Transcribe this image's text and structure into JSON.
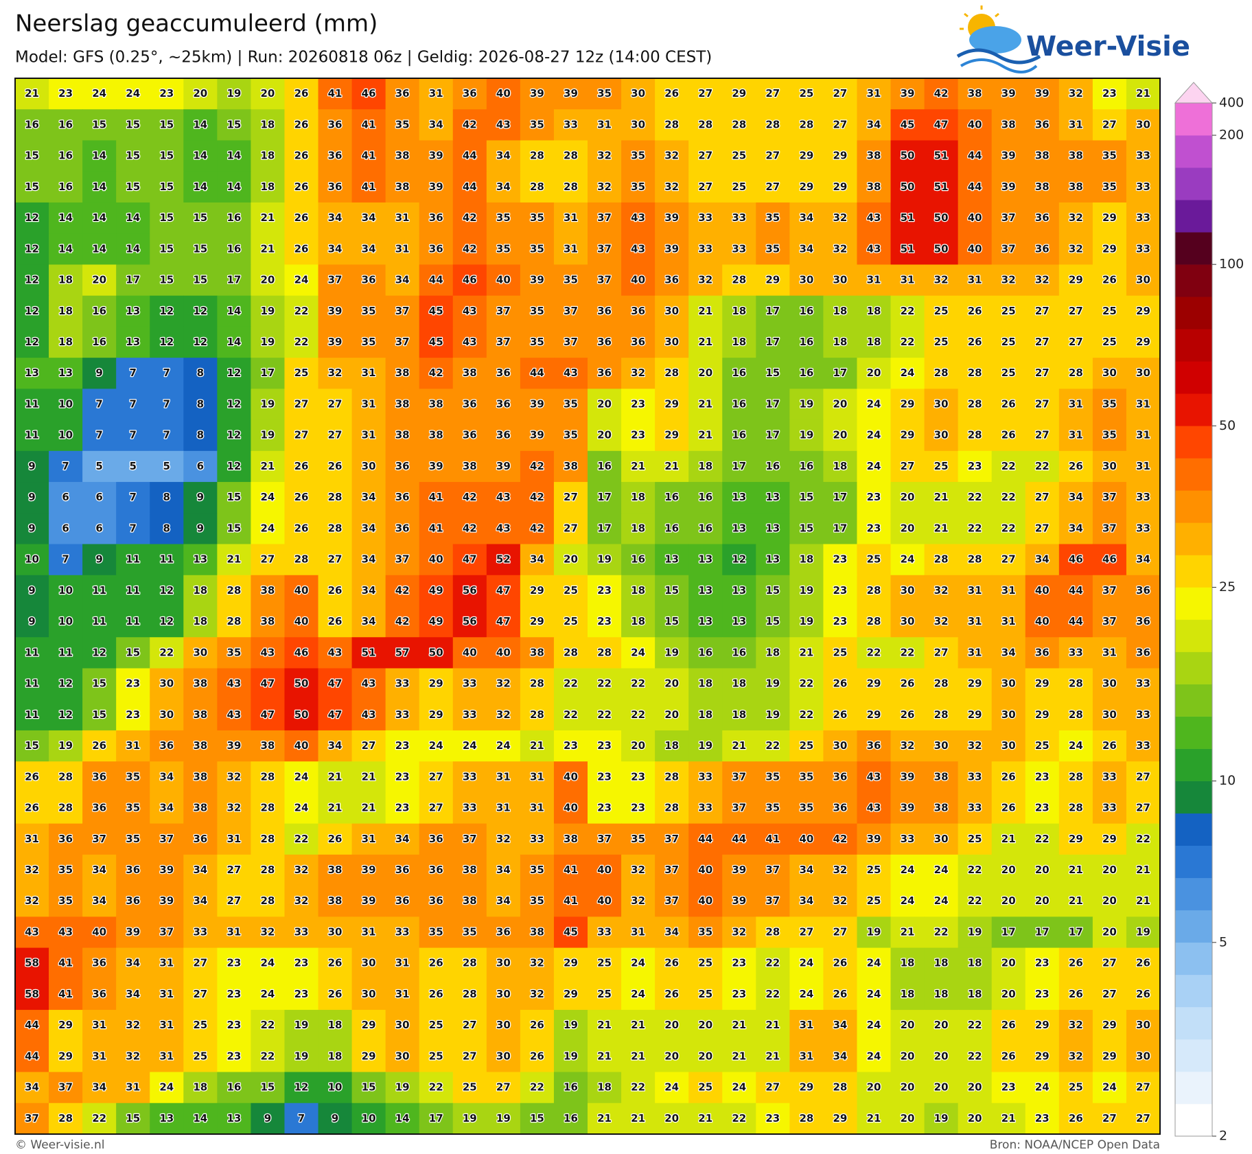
{
  "header": {
    "title": "Neerslag geaccumuleerd (mm)",
    "subtitle": "Model: GFS (0.25°, ~25km)  |  Run: 20260818 06z  |  Geldig: 2026-08-27 12z (14:00 CEST)",
    "logo": "Weer-Visie"
  },
  "map": {
    "rows": [
      [
        21,
        23,
        24,
        24,
        23,
        20,
        19,
        20,
        26,
        41,
        46,
        36,
        31,
        36,
        40,
        39,
        39,
        35,
        30,
        26,
        27,
        29,
        27,
        25,
        27,
        31,
        39,
        42,
        38,
        39,
        39,
        32,
        23,
        21
      ],
      [
        16,
        16,
        15,
        15,
        15,
        14,
        15,
        18,
        26,
        36,
        41,
        35,
        34,
        42,
        43,
        35,
        33,
        31,
        30,
        28,
        28,
        28,
        28,
        28,
        27,
        34,
        45,
        47,
        40,
        38,
        36,
        31,
        27,
        30
      ],
      [
        15,
        16,
        14,
        15,
        15,
        14,
        14,
        18,
        26,
        36,
        41,
        38,
        39,
        44,
        34,
        28,
        28,
        32,
        35,
        32,
        27,
        25,
        27,
        29,
        29,
        38,
        50,
        51,
        44,
        39,
        38,
        38,
        35,
        33
      ],
      [
        15,
        16,
        14,
        15,
        15,
        14,
        14,
        18,
        26,
        36,
        41,
        38,
        39,
        44,
        34,
        28,
        28,
        32,
        35,
        32,
        27,
        25,
        27,
        29,
        29,
        38,
        50,
        51,
        44,
        39,
        38,
        38,
        35,
        33
      ],
      [
        12,
        14,
        14,
        14,
        15,
        15,
        16,
        21,
        26,
        34,
        34,
        31,
        36,
        42,
        35,
        35,
        31,
        37,
        43,
        39,
        33,
        33,
        35,
        34,
        32,
        43,
        51,
        50,
        40,
        37,
        36,
        32,
        29,
        33
      ],
      [
        12,
        14,
        14,
        14,
        15,
        15,
        16,
        21,
        26,
        34,
        34,
        31,
        36,
        42,
        35,
        35,
        31,
        37,
        43,
        39,
        33,
        33,
        35,
        34,
        32,
        43,
        51,
        50,
        40,
        37,
        36,
        32,
        29,
        33
      ],
      [
        12,
        18,
        20,
        17,
        15,
        15,
        17,
        20,
        24,
        37,
        36,
        34,
        44,
        46,
        40,
        39,
        35,
        37,
        40,
        36,
        32,
        28,
        29,
        30,
        30,
        31,
        31,
        32,
        31,
        32,
        32,
        29,
        26,
        30
      ],
      [
        12,
        18,
        16,
        13,
        12,
        12,
        14,
        19,
        22,
        39,
        35,
        37,
        45,
        43,
        37,
        35,
        37,
        36,
        36,
        30,
        21,
        18,
        17,
        16,
        18,
        18,
        22,
        25,
        26,
        25,
        27,
        27,
        25,
        29
      ],
      [
        12,
        18,
        16,
        13,
        12,
        12,
        14,
        19,
        22,
        39,
        35,
        37,
        45,
        43,
        37,
        35,
        37,
        36,
        36,
        30,
        21,
        18,
        17,
        16,
        18,
        18,
        22,
        25,
        26,
        25,
        27,
        27,
        25,
        29
      ],
      [
        13,
        13,
        9,
        7,
        7,
        8,
        12,
        17,
        25,
        32,
        31,
        38,
        42,
        38,
        36,
        44,
        43,
        36,
        32,
        28,
        20,
        16,
        15,
        16,
        17,
        20,
        24,
        28,
        28,
        25,
        27,
        28,
        30,
        30
      ],
      [
        11,
        10,
        7,
        7,
        7,
        8,
        12,
        19,
        27,
        27,
        31,
        38,
        38,
        36,
        36,
        39,
        35,
        20,
        23,
        29,
        21,
        16,
        17,
        19,
        20,
        24,
        29,
        30,
        28,
        26,
        27,
        31,
        35,
        31
      ],
      [
        11,
        10,
        7,
        7,
        7,
        8,
        12,
        19,
        27,
        27,
        31,
        38,
        38,
        36,
        36,
        39,
        35,
        20,
        23,
        29,
        21,
        16,
        17,
        19,
        20,
        24,
        29,
        30,
        28,
        26,
        27,
        31,
        35,
        31
      ],
      [
        9,
        7,
        5,
        5,
        5,
        6,
        12,
        21,
        26,
        26,
        30,
        36,
        39,
        38,
        39,
        42,
        38,
        16,
        21,
        21,
        18,
        17,
        16,
        16,
        18,
        24,
        27,
        25,
        23,
        22,
        22,
        26,
        30,
        31
      ],
      [
        9,
        6,
        6,
        7,
        8,
        9,
        15,
        24,
        26,
        28,
        34,
        36,
        41,
        42,
        43,
        42,
        27,
        17,
        18,
        16,
        16,
        13,
        13,
        15,
        17,
        23,
        20,
        21,
        22,
        22,
        27,
        34,
        37,
        33
      ],
      [
        9,
        6,
        6,
        7,
        8,
        9,
        15,
        24,
        26,
        28,
        34,
        36,
        41,
        42,
        43,
        42,
        27,
        17,
        18,
        16,
        16,
        13,
        13,
        15,
        17,
        23,
        20,
        21,
        22,
        22,
        27,
        34,
        37,
        33
      ],
      [
        10,
        7,
        9,
        11,
        11,
        13,
        21,
        27,
        28,
        27,
        34,
        37,
        40,
        47,
        52,
        34,
        20,
        19,
        16,
        13,
        13,
        12,
        13,
        18,
        23,
        25,
        24,
        28,
        28,
        27,
        34,
        46,
        46,
        34
      ],
      [
        9,
        10,
        11,
        11,
        12,
        18,
        28,
        38,
        40,
        26,
        34,
        42,
        49,
        56,
        47,
        29,
        25,
        23,
        18,
        15,
        13,
        13,
        15,
        19,
        23,
        28,
        30,
        32,
        31,
        31,
        40,
        44,
        37,
        36
      ],
      [
        9,
        10,
        11,
        11,
        12,
        18,
        28,
        38,
        40,
        26,
        34,
        42,
        49,
        56,
        47,
        29,
        25,
        23,
        18,
        15,
        13,
        13,
        15,
        19,
        23,
        28,
        30,
        32,
        31,
        31,
        40,
        44,
        37,
        36
      ],
      [
        11,
        11,
        12,
        15,
        22,
        30,
        35,
        43,
        46,
        43,
        51,
        57,
        50,
        40,
        40,
        38,
        28,
        28,
        24,
        19,
        16,
        16,
        18,
        21,
        25,
        22,
        22,
        27,
        31,
        34,
        36,
        33,
        31,
        36
      ],
      [
        11,
        12,
        15,
        23,
        30,
        38,
        43,
        47,
        50,
        47,
        43,
        33,
        29,
        33,
        32,
        28,
        22,
        22,
        22,
        20,
        18,
        18,
        19,
        22,
        26,
        29,
        26,
        28,
        29,
        30,
        29,
        28,
        30,
        33
      ],
      [
        11,
        12,
        15,
        23,
        30,
        38,
        43,
        47,
        50,
        47,
        43,
        33,
        29,
        33,
        32,
        28,
        22,
        22,
        22,
        20,
        18,
        18,
        19,
        22,
        26,
        29,
        26,
        28,
        29,
        30,
        29,
        28,
        30,
        33
      ],
      [
        15,
        19,
        26,
        31,
        36,
        38,
        39,
        38,
        40,
        34,
        27,
        23,
        24,
        24,
        24,
        21,
        23,
        23,
        20,
        18,
        19,
        21,
        22,
        25,
        30,
        36,
        32,
        30,
        32,
        30,
        25,
        24,
        26,
        33
      ],
      [
        26,
        28,
        36,
        35,
        34,
        38,
        32,
        28,
        24,
        21,
        21,
        23,
        27,
        33,
        31,
        31,
        40,
        23,
        23,
        28,
        33,
        37,
        35,
        35,
        36,
        43,
        39,
        38,
        33,
        26,
        23,
        28,
        33,
        27
      ],
      [
        26,
        28,
        36,
        35,
        34,
        38,
        32,
        28,
        24,
        21,
        21,
        23,
        27,
        33,
        31,
        31,
        40,
        23,
        23,
        28,
        33,
        37,
        35,
        35,
        36,
        43,
        39,
        38,
        33,
        26,
        23,
        28,
        33,
        27
      ],
      [
        31,
        36,
        37,
        35,
        37,
        36,
        31,
        28,
        22,
        26,
        31,
        34,
        36,
        37,
        32,
        33,
        38,
        37,
        35,
        37,
        44,
        44,
        41,
        40,
        42,
        39,
        33,
        30,
        25,
        21,
        22,
        29,
        29,
        22
      ],
      [
        32,
        35,
        34,
        36,
        39,
        34,
        27,
        28,
        32,
        38,
        39,
        36,
        36,
        38,
        34,
        35,
        41,
        40,
        32,
        37,
        40,
        39,
        37,
        34,
        32,
        25,
        24,
        24,
        22,
        20,
        20,
        21,
        20,
        21
      ],
      [
        32,
        35,
        34,
        36,
        39,
        34,
        27,
        28,
        32,
        38,
        39,
        36,
        36,
        38,
        34,
        35,
        41,
        40,
        32,
        37,
        40,
        39,
        37,
        34,
        32,
        25,
        24,
        24,
        22,
        20,
        20,
        21,
        20,
        21
      ],
      [
        43,
        43,
        40,
        39,
        37,
        33,
        31,
        32,
        33,
        30,
        31,
        33,
        35,
        35,
        36,
        38,
        45,
        33,
        31,
        34,
        35,
        32,
        28,
        27,
        27,
        19,
        21,
        22,
        19,
        17,
        17,
        17,
        20,
        19
      ],
      [
        58,
        41,
        36,
        34,
        31,
        27,
        23,
        24,
        23,
        26,
        30,
        31,
        26,
        28,
        30,
        32,
        29,
        25,
        24,
        26,
        25,
        23,
        22,
        24,
        26,
        24,
        18,
        18,
        18,
        20,
        23,
        26,
        27,
        26
      ],
      [
        58,
        41,
        36,
        34,
        31,
        27,
        23,
        24,
        23,
        26,
        30,
        31,
        26,
        28,
        30,
        32,
        29,
        25,
        24,
        26,
        25,
        23,
        22,
        24,
        26,
        24,
        18,
        18,
        18,
        20,
        23,
        26,
        27,
        26
      ],
      [
        44,
        29,
        31,
        32,
        31,
        25,
        23,
        22,
        19,
        18,
        29,
        30,
        25,
        27,
        30,
        26,
        19,
        21,
        21,
        20,
        20,
        21,
        21,
        31,
        34,
        24,
        20,
        20,
        22,
        26,
        29,
        32,
        29,
        30
      ],
      [
        44,
        29,
        31,
        32,
        31,
        25,
        23,
        22,
        19,
        18,
        29,
        30,
        25,
        27,
        30,
        26,
        19,
        21,
        21,
        20,
        20,
        21,
        21,
        31,
        34,
        24,
        20,
        20,
        22,
        26,
        29,
        32,
        29,
        30
      ],
      [
        34,
        37,
        34,
        31,
        24,
        18,
        16,
        15,
        12,
        10,
        15,
        19,
        22,
        25,
        27,
        22,
        16,
        18,
        22,
        24,
        25,
        24,
        27,
        29,
        28,
        20,
        20,
        20,
        20,
        23,
        24,
        25,
        24,
        27
      ],
      [
        37,
        28,
        22,
        15,
        13,
        14,
        13,
        9,
        7,
        9,
        10,
        14,
        17,
        19,
        19,
        15,
        16,
        21,
        21,
        20,
        21,
        22,
        23,
        28,
        29,
        21,
        20,
        19,
        20,
        21,
        23,
        26,
        27,
        27
      ]
    ],
    "colorbar": {
      "bounds": [
        2,
        2.5,
        3,
        3.5,
        4,
        4.5,
        5,
        6,
        7,
        8,
        9,
        10,
        12.5,
        15,
        17.5,
        20,
        22.5,
        25,
        30,
        35,
        40,
        45,
        50,
        60,
        70,
        80,
        90,
        100,
        125,
        150,
        175,
        200,
        400
      ],
      "colors": [
        "#ffffff",
        "#eaf3fc",
        "#d6e9fa",
        "#c2dff8",
        "#a9d1f5",
        "#8cc0f0",
        "#6aaae8",
        "#4a92e0",
        "#2a78d4",
        "#1462c2",
        "#16873a",
        "#2aa12a",
        "#4fb61e",
        "#7ec41a",
        "#a9d512",
        "#d4e60a",
        "#f6f600",
        "#ffd400",
        "#ffb000",
        "#ff9000",
        "#ff6e00",
        "#ff4600",
        "#e81400",
        "#d00000",
        "#b80000",
        "#9c0000",
        "#800010",
        "#55001e",
        "#6a1a9a",
        "#9a3cc0",
        "#c050d0",
        "#ee70d8"
      ],
      "extend_color": "#fcd4f0",
      "ticks": [
        2,
        5,
        10,
        25,
        50,
        100,
        200,
        400
      ]
    }
  },
  "footer": {
    "left": "© Weer-visie.nl",
    "right": "Bron: NOAA/NCEP Open Data"
  }
}
